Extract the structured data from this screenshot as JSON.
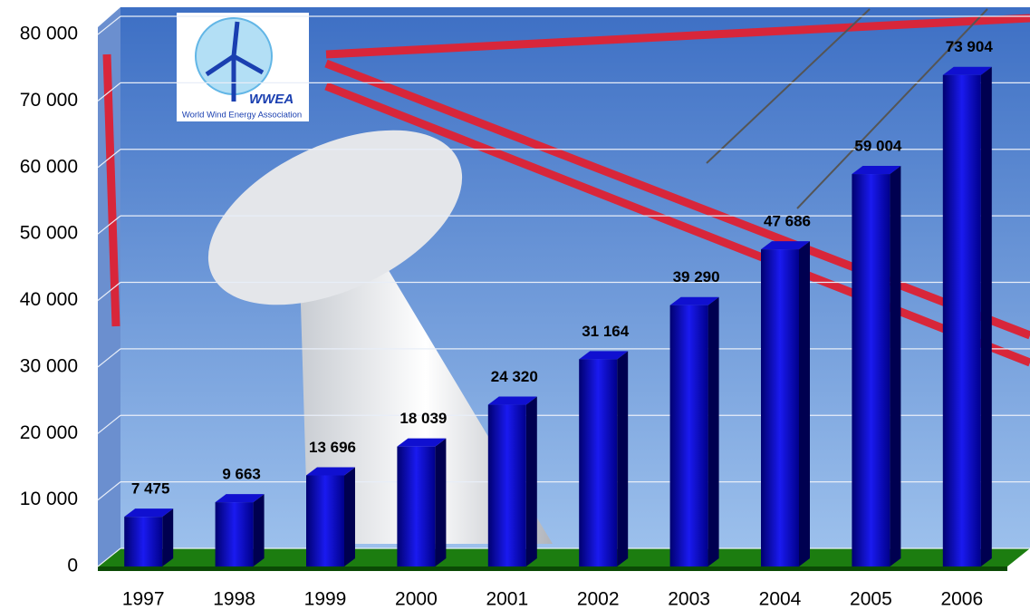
{
  "chart_data": {
    "type": "bar3d",
    "logo": {
      "title": "WWEA",
      "subtitle": "World Wind Energy Association"
    },
    "categories": [
      "1997",
      "1998",
      "1999",
      "2000",
      "2001",
      "2002",
      "2003",
      "2004",
      "2005",
      "2006"
    ],
    "values": [
      7475,
      9663,
      13696,
      18039,
      24320,
      31164,
      39290,
      47686,
      59004,
      73904
    ],
    "value_labels": [
      "7 475",
      "9 663",
      "13 696",
      "18 039",
      "24 320",
      "31 164",
      "39 290",
      "47 686",
      "59 004",
      "73 904"
    ],
    "color": "#1010d0",
    "ylim": [
      0,
      80000
    ],
    "yticks": [
      0,
      {
        "value": 10000,
        "label": "10 000"
      },
      {
        "value": 20000,
        "label": "20 000"
      },
      {
        "value": 30000,
        "label": "30 000"
      },
      {
        "value": 40000,
        "label": "40 000"
      },
      {
        "value": 50000,
        "label": "50 000"
      },
      {
        "value": 60000,
        "label": "60 000"
      },
      {
        "value": 70000,
        "label": "70 000"
      },
      {
        "value": 80000,
        "label": "80 000"
      }
    ],
    "grid": true
  }
}
